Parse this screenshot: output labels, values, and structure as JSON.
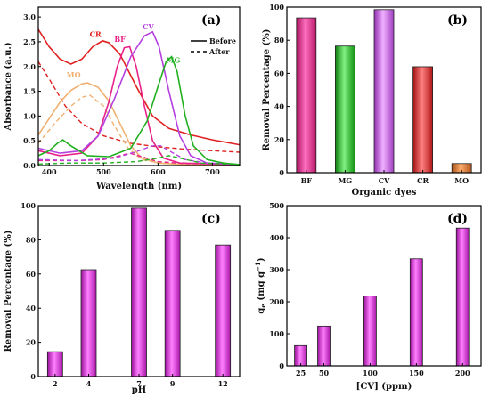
{
  "colors": {
    "BF": "#e8228a",
    "MG": "#20b020",
    "CV": "#b540e0",
    "CR": "#e02020",
    "MO": "#f0b070",
    "magenta": "#e021e0",
    "axis": "#000000"
  },
  "chart_data": [
    {
      "type": "line",
      "panel_label": "(a)",
      "xlabel": "Wavelength (nm)",
      "ylabel": "Absorbance (a.u.)",
      "xlim": [
        380,
        750
      ],
      "ylim": [
        0,
        3.2
      ],
      "xticks": [
        400,
        500,
        600,
        700
      ],
      "yticks": [
        0.0,
        0.5,
        1.0,
        1.5,
        2.0,
        2.5,
        3.0
      ],
      "legend": {
        "placement": "top-right",
        "entries": [
          {
            "label": "Before",
            "style": "solid"
          },
          {
            "label": "After",
            "style": "dashed"
          }
        ]
      },
      "series": [
        {
          "name": "CR",
          "color": "#e02020",
          "label_at": [
            485,
            2.6
          ],
          "before": [
            [
              380,
              2.75
            ],
            [
              400,
              2.4
            ],
            [
              420,
              2.15
            ],
            [
              440,
              2.05
            ],
            [
              460,
              2.15
            ],
            [
              480,
              2.4
            ],
            [
              498,
              2.52
            ],
            [
              510,
              2.48
            ],
            [
              530,
              2.25
            ],
            [
              560,
              1.6
            ],
            [
              590,
              1.0
            ],
            [
              620,
              0.75
            ],
            [
              660,
              0.62
            ],
            [
              700,
              0.52
            ],
            [
              750,
              0.42
            ]
          ],
          "after": [
            [
              380,
              2.1
            ],
            [
              400,
              1.75
            ],
            [
              430,
              1.2
            ],
            [
              460,
              0.85
            ],
            [
              500,
              0.6
            ],
            [
              550,
              0.45
            ],
            [
              600,
              0.38
            ],
            [
              650,
              0.33
            ],
            [
              700,
              0.3
            ],
            [
              750,
              0.27
            ]
          ]
        },
        {
          "name": "MO",
          "color": "#f0b070",
          "label_at": [
            445,
            1.78
          ],
          "before": [
            [
              380,
              0.62
            ],
            [
              400,
              0.95
            ],
            [
              420,
              1.28
            ],
            [
              440,
              1.52
            ],
            [
              460,
              1.65
            ],
            [
              470,
              1.67
            ],
            [
              490,
              1.58
            ],
            [
              510,
              1.3
            ],
            [
              530,
              0.85
            ],
            [
              550,
              0.4
            ],
            [
              570,
              0.15
            ],
            [
              600,
              0.05
            ],
            [
              650,
              0.02
            ],
            [
              750,
              0.0
            ]
          ],
          "after": [
            [
              380,
              0.45
            ],
            [
              410,
              0.85
            ],
            [
              440,
              1.2
            ],
            [
              460,
              1.38
            ],
            [
              475,
              1.42
            ],
            [
              500,
              1.2
            ],
            [
              520,
              0.8
            ],
            [
              545,
              0.35
            ],
            [
              570,
              0.12
            ],
            [
              610,
              0.04
            ],
            [
              750,
              0.0
            ]
          ]
        },
        {
          "name": "BF",
          "color": "#e8228a",
          "label_at": [
            530,
            2.5
          ],
          "before": [
            [
              380,
              0.3
            ],
            [
              420,
              0.2
            ],
            [
              460,
              0.25
            ],
            [
              490,
              0.6
            ],
            [
              510,
              1.3
            ],
            [
              525,
              2.0
            ],
            [
              538,
              2.38
            ],
            [
              548,
              2.4
            ],
            [
              560,
              2.0
            ],
            [
              575,
              1.2
            ],
            [
              590,
              0.5
            ],
            [
              610,
              0.15
            ],
            [
              640,
              0.05
            ],
            [
              750,
              0.02
            ]
          ],
          "after": [
            [
              380,
              0.1
            ],
            [
              460,
              0.1
            ],
            [
              500,
              0.12
            ],
            [
              530,
              0.2
            ],
            [
              548,
              0.25
            ],
            [
              570,
              0.18
            ],
            [
              600,
              0.08
            ],
            [
              650,
              0.04
            ],
            [
              750,
              0.02
            ]
          ]
        },
        {
          "name": "CV",
          "color": "#b540e0",
          "label_at": [
            582,
            2.75
          ],
          "before": [
            [
              380,
              0.35
            ],
            [
              420,
              0.25
            ],
            [
              460,
              0.3
            ],
            [
              490,
              0.6
            ],
            [
              520,
              1.35
            ],
            [
              550,
              2.2
            ],
            [
              575,
              2.62
            ],
            [
              590,
              2.7
            ],
            [
              602,
              2.4
            ],
            [
              620,
              1.5
            ],
            [
              640,
              0.6
            ],
            [
              660,
              0.2
            ],
            [
              690,
              0.05
            ],
            [
              750,
              0.02
            ]
          ],
          "after": [
            [
              380,
              0.12
            ],
            [
              450,
              0.1
            ],
            [
              520,
              0.15
            ],
            [
              560,
              0.28
            ],
            [
              590,
              0.4
            ],
            [
              605,
              0.4
            ],
            [
              620,
              0.3
            ],
            [
              650,
              0.12
            ],
            [
              690,
              0.05
            ],
            [
              750,
              0.02
            ]
          ]
        },
        {
          "name": "MG",
          "color": "#20b020",
          "label_at": [
            628,
            2.08
          ],
          "before": [
            [
              380,
              0.2
            ],
            [
              400,
              0.3
            ],
            [
              415,
              0.45
            ],
            [
              425,
              0.52
            ],
            [
              440,
              0.4
            ],
            [
              470,
              0.2
            ],
            [
              510,
              0.18
            ],
            [
              550,
              0.35
            ],
            [
              580,
              0.9
            ],
            [
              600,
              1.6
            ],
            [
              615,
              2.1
            ],
            [
              625,
              2.2
            ],
            [
              635,
              1.9
            ],
            [
              650,
              1.0
            ],
            [
              665,
              0.4
            ],
            [
              690,
              0.12
            ],
            [
              720,
              0.05
            ],
            [
              750,
              0.02
            ]
          ],
          "after": [
            [
              380,
              0.03
            ],
            [
              440,
              0.05
            ],
            [
              500,
              0.05
            ],
            [
              560,
              0.08
            ],
            [
              600,
              0.15
            ],
            [
              620,
              0.2
            ],
            [
              640,
              0.15
            ],
            [
              680,
              0.05
            ],
            [
              750,
              0.02
            ]
          ]
        }
      ]
    },
    {
      "type": "bar",
      "panel_label": "(b)",
      "xlabel": "Organic dyes",
      "ylabel": "Removal Percentage (%)",
      "ylim": [
        0,
        100
      ],
      "yticks": [
        0,
        20,
        40,
        60,
        80,
        100
      ],
      "categories": [
        "BF",
        "MG",
        "CV",
        "CR",
        "MO"
      ],
      "values": [
        93.5,
        76.5,
        98.5,
        64,
        5.5
      ],
      "bar_colors": [
        "#e8228a",
        "#30c030",
        "#d070e0",
        "#e02020",
        "#e07020"
      ]
    },
    {
      "type": "bar",
      "panel_label": "(c)",
      "xlabel": "pH",
      "ylabel": "Removal Percentage (%)",
      "ylim": [
        0,
        100
      ],
      "yticks": [
        0,
        20,
        40,
        60,
        80,
        100
      ],
      "categories": [
        "2",
        "4",
        "7",
        "9",
        "12"
      ],
      "x": [
        2,
        4,
        7,
        9,
        12
      ],
      "xlim": [
        1,
        13
      ],
      "values": [
        14.5,
        62.5,
        98.5,
        85.5,
        77
      ]
    },
    {
      "type": "bar",
      "panel_label": "(d)",
      "xlabel": "[CV] (ppm)",
      "ylabel": "qe (mg g-1)",
      "ylabel_parts": {
        "q": "q",
        "sub": "e",
        "rest": " (mg g",
        "sup": "−1",
        "close": ")"
      },
      "ylim": [
        0,
        500
      ],
      "yticks": [
        0,
        100,
        200,
        300,
        400,
        500
      ],
      "categories": [
        "25",
        "50",
        "100",
        "150",
        "200"
      ],
      "x": [
        25,
        50,
        100,
        150,
        200
      ],
      "xlim": [
        10,
        220
      ],
      "values": [
        63,
        124,
        218,
        334,
        430
      ]
    }
  ]
}
